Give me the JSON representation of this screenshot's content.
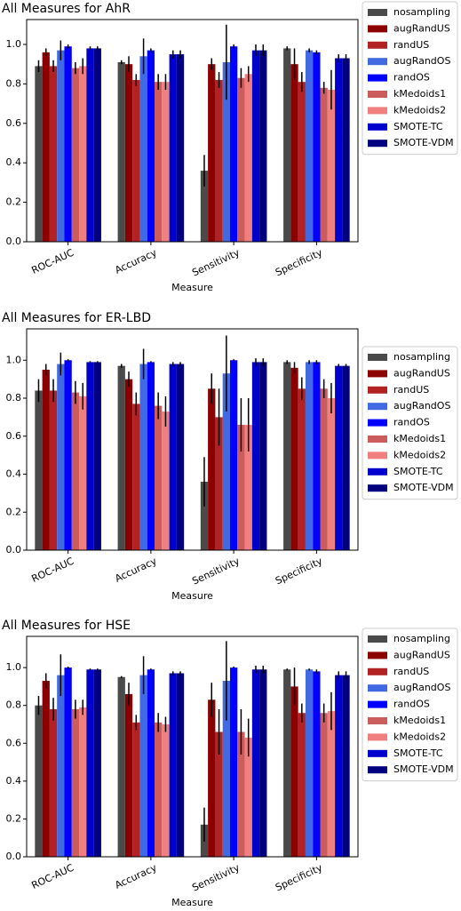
{
  "chart_data": [
    {
      "type": "bar",
      "title": "All Measures for AhR",
      "x_label": "Measure",
      "categories": [
        "ROC-AUC",
        "Accuracy",
        "Sensitivity",
        "Specificity"
      ],
      "ylim": [
        0,
        1.126
      ],
      "yticks": [
        {
          "value": 0,
          "label": "0.0"
        },
        0.2,
        0.4,
        0.6,
        0.8,
        {
          "value": 1,
          "label": "1.0"
        }
      ],
      "series": [
        {
          "name": "nosampling",
          "color": "#4a4a4a",
          "values": [
            0.89,
            0.91,
            0.36,
            0.98
          ],
          "errors": [
            0.03,
            0.01,
            0.08,
            0.01
          ]
        },
        {
          "name": "augRandUS",
          "color": "#8b0000",
          "values": [
            0.96,
            0.9,
            0.9,
            0.9
          ],
          "errors": [
            0.02,
            0.04,
            0.03,
            0.08
          ]
        },
        {
          "name": "randUS",
          "color": "#b22222",
          "values": [
            0.89,
            0.82,
            0.82,
            0.81
          ],
          "errors": [
            0.03,
            0.03,
            0.04,
            0.05
          ]
        },
        {
          "name": "augRandOS",
          "color": "#4169e1",
          "values": [
            0.97,
            0.94,
            0.91,
            0.97
          ],
          "errors": [
            0.05,
            0.09,
            0.19,
            0.01
          ]
        },
        {
          "name": "randOS",
          "color": "#0000ff",
          "values": [
            0.99,
            0.97,
            0.99,
            0.96
          ],
          "errors": [
            0.01,
            0.01,
            0.01,
            0.01
          ]
        },
        {
          "name": "kMedoids1",
          "color": "#cd5c5c",
          "values": [
            0.88,
            0.81,
            0.83,
            0.78
          ],
          "errors": [
            0.03,
            0.04,
            0.05,
            0.03
          ]
        },
        {
          "name": "kMedoids2",
          "color": "#f08080",
          "values": [
            0.89,
            0.81,
            0.85,
            0.77
          ],
          "errors": [
            0.04,
            0.04,
            0.04,
            0.1
          ]
        },
        {
          "name": "SMOTE-TC",
          "color": "#0000cd",
          "values": [
            0.98,
            0.95,
            0.97,
            0.93
          ],
          "errors": [
            0.01,
            0.02,
            0.03,
            0.02
          ]
        },
        {
          "name": "SMOTE-VDM",
          "color": "#000080",
          "values": [
            0.98,
            0.95,
            0.97,
            0.93
          ],
          "errors": [
            0.01,
            0.02,
            0.03,
            0.02
          ]
        }
      ]
    },
    {
      "type": "bar",
      "title": "All Measures for ER-LBD",
      "x_label": "Measure",
      "categories": [
        "ROC-AUC",
        "Accuracy",
        "Sensitivity",
        "Specificity"
      ],
      "ylim": [
        0,
        1.165
      ],
      "yticks": [
        {
          "value": 0,
          "label": "0.0"
        },
        0.2,
        0.4,
        0.6,
        0.8,
        {
          "value": 1,
          "label": "1.0"
        }
      ],
      "series": [
        {
          "name": "nosampling",
          "color": "#4a4a4a",
          "values": [
            0.84,
            0.97,
            0.36,
            0.99
          ],
          "errors": [
            0.06,
            0.01,
            0.13,
            0.01
          ]
        },
        {
          "name": "augRandUS",
          "color": "#8b0000",
          "values": [
            0.95,
            0.9,
            0.85,
            0.96
          ],
          "errors": [
            0.03,
            0.04,
            0.08,
            0.03
          ]
        },
        {
          "name": "randUS",
          "color": "#b22222",
          "values": [
            0.84,
            0.77,
            0.7,
            0.85
          ],
          "errors": [
            0.06,
            0.06,
            0.15,
            0.06
          ]
        },
        {
          "name": "augRandOS",
          "color": "#4169e1",
          "values": [
            0.98,
            0.98,
            0.93,
            0.99
          ],
          "errors": [
            0.06,
            0.08,
            0.2,
            0.01
          ]
        },
        {
          "name": "randOS",
          "color": "#0000ff",
          "values": [
            1.0,
            0.99,
            1.0,
            0.99
          ],
          "errors": [
            0.005,
            0.005,
            0.005,
            0.01
          ]
        },
        {
          "name": "kMedoids1",
          "color": "#cd5c5c",
          "values": [
            0.83,
            0.76,
            0.66,
            0.85
          ],
          "errors": [
            0.06,
            0.07,
            0.14,
            0.05
          ]
        },
        {
          "name": "kMedoids2",
          "color": "#f08080",
          "values": [
            0.81,
            0.73,
            0.66,
            0.8
          ],
          "errors": [
            0.07,
            0.08,
            0.14,
            0.08
          ]
        },
        {
          "name": "SMOTE-TC",
          "color": "#0000cd",
          "values": [
            0.99,
            0.98,
            0.99,
            0.97
          ],
          "errors": [
            0.005,
            0.01,
            0.02,
            0.01
          ]
        },
        {
          "name": "SMOTE-VDM",
          "color": "#000080",
          "values": [
            0.99,
            0.98,
            0.99,
            0.97
          ],
          "errors": [
            0.005,
            0.01,
            0.02,
            0.01
          ]
        }
      ]
    },
    {
      "type": "bar",
      "title": "All Measures for HSE",
      "x_label": "Measure",
      "categories": [
        "ROC-AUC",
        "Accuracy",
        "Sensitivity",
        "Specificity"
      ],
      "ylim": [
        0,
        1.165
      ],
      "yticks": [
        {
          "value": 0,
          "label": "0.0"
        },
        0.2,
        0.4,
        0.6,
        0.8,
        {
          "value": 1,
          "label": "1.0"
        }
      ],
      "series": [
        {
          "name": "nosampling",
          "color": "#4a4a4a",
          "values": [
            0.8,
            0.95,
            0.17,
            0.99
          ],
          "errors": [
            0.05,
            0.005,
            0.09,
            0.005
          ]
        },
        {
          "name": "augRandUS",
          "color": "#8b0000",
          "values": [
            0.93,
            0.86,
            0.83,
            0.9
          ],
          "errors": [
            0.04,
            0.06,
            0.09,
            0.1
          ]
        },
        {
          "name": "randUS",
          "color": "#b22222",
          "values": [
            0.78,
            0.71,
            0.66,
            0.76
          ],
          "errors": [
            0.06,
            0.04,
            0.12,
            0.05
          ]
        },
        {
          "name": "augRandOS",
          "color": "#4169e1",
          "values": [
            0.96,
            0.96,
            0.93,
            0.99
          ],
          "errors": [
            0.11,
            0.1,
            0.21,
            0.005
          ]
        },
        {
          "name": "randOS",
          "color": "#0000ff",
          "values": [
            1.0,
            0.99,
            1.0,
            0.98
          ],
          "errors": [
            0.005,
            0.005,
            0.005,
            0.01
          ]
        },
        {
          "name": "kMedoids1",
          "color": "#cd5c5c",
          "values": [
            0.78,
            0.71,
            0.66,
            0.76
          ],
          "errors": [
            0.05,
            0.05,
            0.12,
            0.05
          ]
        },
        {
          "name": "kMedoids2",
          "color": "#f08080",
          "values": [
            0.79,
            0.7,
            0.63,
            0.77
          ],
          "errors": [
            0.04,
            0.04,
            0.1,
            0.1
          ]
        },
        {
          "name": "SMOTE-TC",
          "color": "#0000cd",
          "values": [
            0.99,
            0.97,
            0.99,
            0.96
          ],
          "errors": [
            0.005,
            0.01,
            0.02,
            0.02
          ]
        },
        {
          "name": "SMOTE-VDM",
          "color": "#000080",
          "values": [
            0.99,
            0.97,
            0.99,
            0.96
          ],
          "errors": [
            0.005,
            0.01,
            0.02,
            0.02
          ]
        }
      ]
    }
  ]
}
